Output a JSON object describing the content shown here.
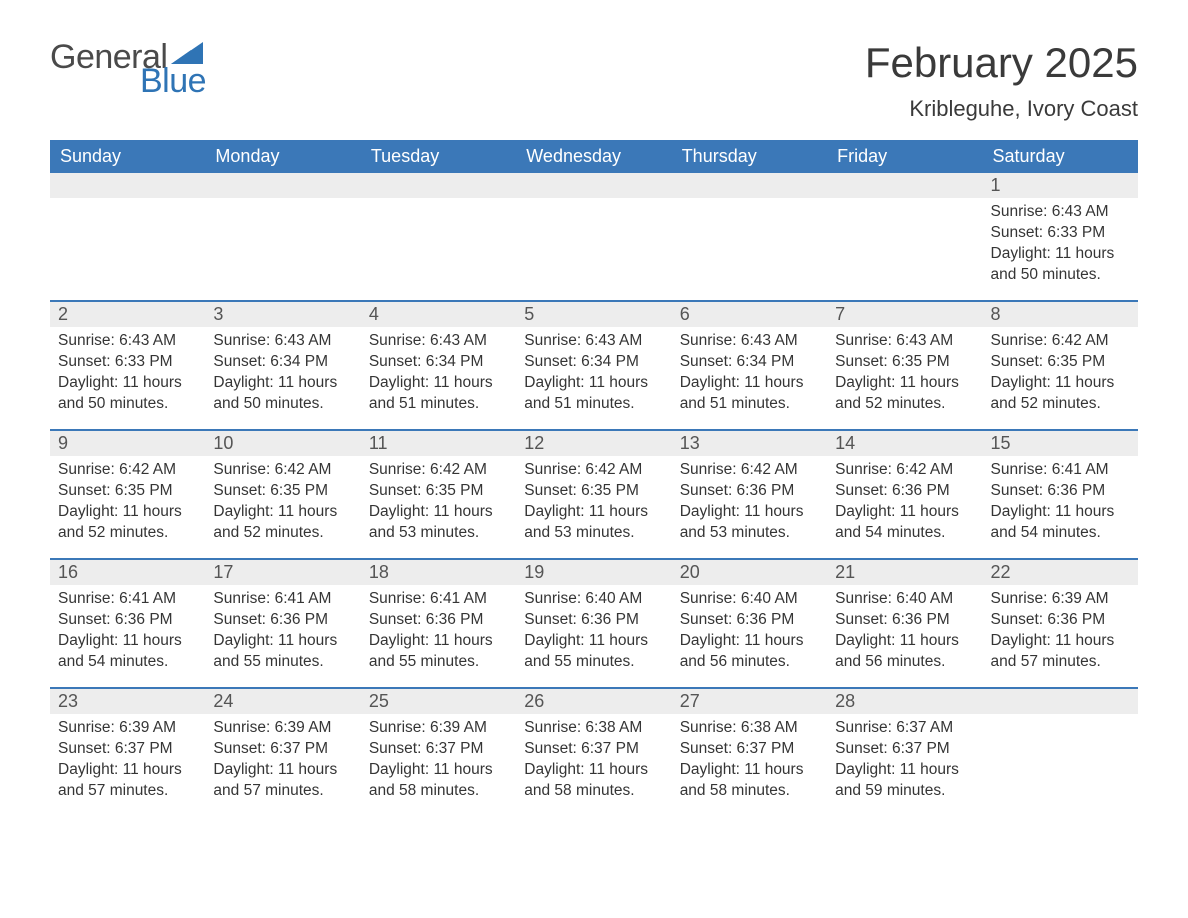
{
  "logo": {
    "text_general": "General",
    "text_blue": "Blue",
    "flag_color": "#2f74b5"
  },
  "title": "February 2025",
  "location": "Kribleguhe, Ivory Coast",
  "header_bg": "#3b78b8",
  "header_fg": "#ffffff",
  "daynum_bg": "#ededed",
  "rule_color": "#3b78b8",
  "text_color": "#333333",
  "day_names": [
    "Sunday",
    "Monday",
    "Tuesday",
    "Wednesday",
    "Thursday",
    "Friday",
    "Saturday"
  ],
  "labels": {
    "sunrise": "Sunrise:",
    "sunset": "Sunset:",
    "daylight": "Daylight:"
  },
  "weeks": [
    [
      {
        "day": null
      },
      {
        "day": null
      },
      {
        "day": null
      },
      {
        "day": null
      },
      {
        "day": null
      },
      {
        "day": null
      },
      {
        "day": 1,
        "sunrise": "6:43 AM",
        "sunset": "6:33 PM",
        "daylight": "11 hours and 50 minutes."
      }
    ],
    [
      {
        "day": 2,
        "sunrise": "6:43 AM",
        "sunset": "6:33 PM",
        "daylight": "11 hours and 50 minutes."
      },
      {
        "day": 3,
        "sunrise": "6:43 AM",
        "sunset": "6:34 PM",
        "daylight": "11 hours and 50 minutes."
      },
      {
        "day": 4,
        "sunrise": "6:43 AM",
        "sunset": "6:34 PM",
        "daylight": "11 hours and 51 minutes."
      },
      {
        "day": 5,
        "sunrise": "6:43 AM",
        "sunset": "6:34 PM",
        "daylight": "11 hours and 51 minutes."
      },
      {
        "day": 6,
        "sunrise": "6:43 AM",
        "sunset": "6:34 PM",
        "daylight": "11 hours and 51 minutes."
      },
      {
        "day": 7,
        "sunrise": "6:43 AM",
        "sunset": "6:35 PM",
        "daylight": "11 hours and 52 minutes."
      },
      {
        "day": 8,
        "sunrise": "6:42 AM",
        "sunset": "6:35 PM",
        "daylight": "11 hours and 52 minutes."
      }
    ],
    [
      {
        "day": 9,
        "sunrise": "6:42 AM",
        "sunset": "6:35 PM",
        "daylight": "11 hours and 52 minutes."
      },
      {
        "day": 10,
        "sunrise": "6:42 AM",
        "sunset": "6:35 PM",
        "daylight": "11 hours and 52 minutes."
      },
      {
        "day": 11,
        "sunrise": "6:42 AM",
        "sunset": "6:35 PM",
        "daylight": "11 hours and 53 minutes."
      },
      {
        "day": 12,
        "sunrise": "6:42 AM",
        "sunset": "6:35 PM",
        "daylight": "11 hours and 53 minutes."
      },
      {
        "day": 13,
        "sunrise": "6:42 AM",
        "sunset": "6:36 PM",
        "daylight": "11 hours and 53 minutes."
      },
      {
        "day": 14,
        "sunrise": "6:42 AM",
        "sunset": "6:36 PM",
        "daylight": "11 hours and 54 minutes."
      },
      {
        "day": 15,
        "sunrise": "6:41 AM",
        "sunset": "6:36 PM",
        "daylight": "11 hours and 54 minutes."
      }
    ],
    [
      {
        "day": 16,
        "sunrise": "6:41 AM",
        "sunset": "6:36 PM",
        "daylight": "11 hours and 54 minutes."
      },
      {
        "day": 17,
        "sunrise": "6:41 AM",
        "sunset": "6:36 PM",
        "daylight": "11 hours and 55 minutes."
      },
      {
        "day": 18,
        "sunrise": "6:41 AM",
        "sunset": "6:36 PM",
        "daylight": "11 hours and 55 minutes."
      },
      {
        "day": 19,
        "sunrise": "6:40 AM",
        "sunset": "6:36 PM",
        "daylight": "11 hours and 55 minutes."
      },
      {
        "day": 20,
        "sunrise": "6:40 AM",
        "sunset": "6:36 PM",
        "daylight": "11 hours and 56 minutes."
      },
      {
        "day": 21,
        "sunrise": "6:40 AM",
        "sunset": "6:36 PM",
        "daylight": "11 hours and 56 minutes."
      },
      {
        "day": 22,
        "sunrise": "6:39 AM",
        "sunset": "6:36 PM",
        "daylight": "11 hours and 57 minutes."
      }
    ],
    [
      {
        "day": 23,
        "sunrise": "6:39 AM",
        "sunset": "6:37 PM",
        "daylight": "11 hours and 57 minutes."
      },
      {
        "day": 24,
        "sunrise": "6:39 AM",
        "sunset": "6:37 PM",
        "daylight": "11 hours and 57 minutes."
      },
      {
        "day": 25,
        "sunrise": "6:39 AM",
        "sunset": "6:37 PM",
        "daylight": "11 hours and 58 minutes."
      },
      {
        "day": 26,
        "sunrise": "6:38 AM",
        "sunset": "6:37 PM",
        "daylight": "11 hours and 58 minutes."
      },
      {
        "day": 27,
        "sunrise": "6:38 AM",
        "sunset": "6:37 PM",
        "daylight": "11 hours and 58 minutes."
      },
      {
        "day": 28,
        "sunrise": "6:37 AM",
        "sunset": "6:37 PM",
        "daylight": "11 hours and 59 minutes."
      },
      {
        "day": null
      }
    ]
  ]
}
